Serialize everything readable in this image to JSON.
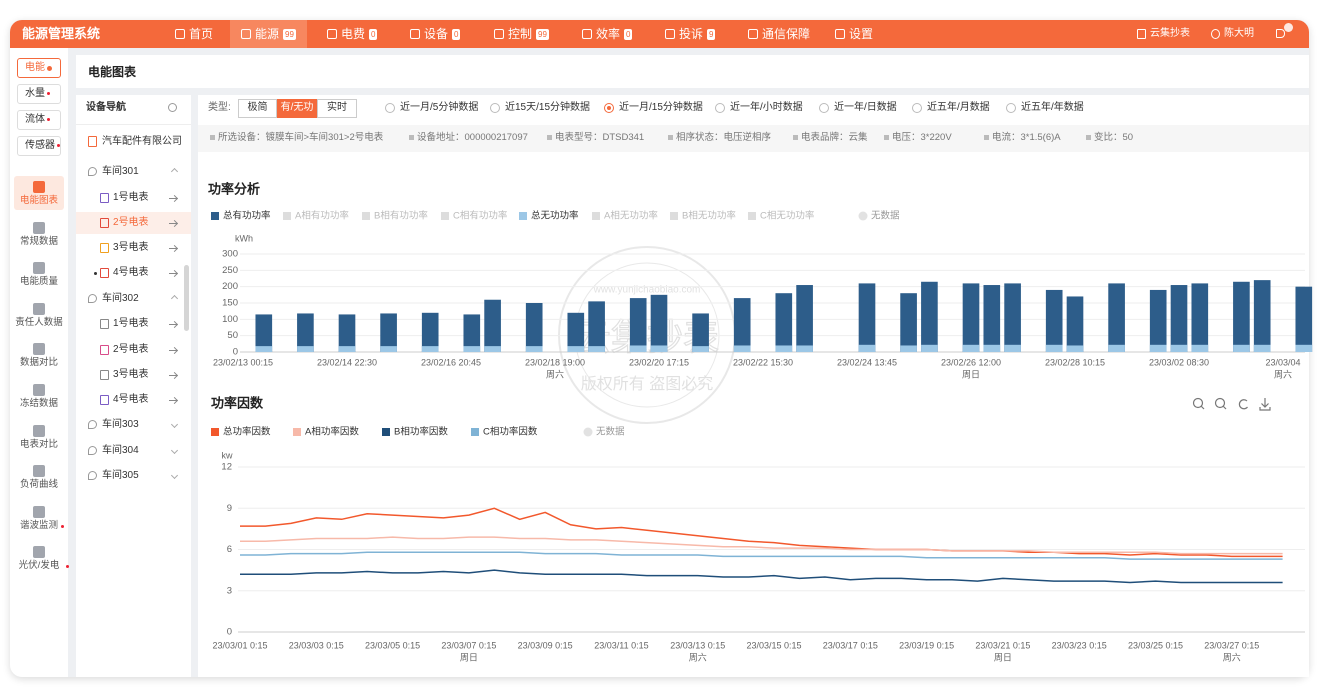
{
  "header": {
    "title": "能源管理系统",
    "nav": [
      {
        "label": "首页"
      },
      {
        "label": "能源",
        "badge": "99"
      },
      {
        "label": "电费",
        "badge": "0"
      },
      {
        "label": "设备",
        "badge": "0"
      },
      {
        "label": "控制",
        "badge": "99"
      },
      {
        "label": "效率",
        "badge": "0"
      },
      {
        "label": "投诉",
        "badge": "9"
      },
      {
        "label": "通信保障"
      },
      {
        "label": "设置"
      }
    ],
    "user_links": [
      "云集抄表",
      "陈大明"
    ]
  },
  "category_tabs": [
    "电能",
    "水量",
    "流体",
    "传感器"
  ],
  "side_menu": [
    "电能图表",
    "常规数据",
    "电能质量",
    "责任人数据",
    "数据对比",
    "冻结数据",
    "电表对比",
    "负荷曲线",
    "谐波监测",
    "光伏/发电"
  ],
  "page_title": "电能图表",
  "device_nav": {
    "title": "设备导航",
    "company": "汽车配件有限公司",
    "groups": [
      {
        "label": "车间301",
        "meters": [
          "1号电表",
          "2号电表",
          "3号电表",
          "4号电表"
        ]
      },
      {
        "label": "车间302",
        "meters": [
          "1号电表",
          "2号电表",
          "3号电表",
          "4号电表"
        ]
      },
      {
        "label": "车间303"
      },
      {
        "label": "车间304"
      },
      {
        "label": "车间305"
      }
    ]
  },
  "filters": {
    "type_label": "类型:",
    "types": [
      "极简",
      "有/无功",
      "实时"
    ],
    "ranges": [
      "近一月/5分钟数据",
      "近15天/15分钟数据",
      "近一月/15分钟数据",
      "近一年/小时数据",
      "近一年/日数据",
      "近五年/月数据",
      "近五年/年数据"
    ]
  },
  "meter_info": [
    "所选设备：镀膜车间>车间301>2号电表",
    "设备地址：000000217097",
    "电表型号：DTSD341",
    "相序状态：电压逆相序",
    "电表品牌：云集",
    "电压：3*220V",
    "电流：3*1.5(6)A",
    "变比：50"
  ],
  "watermark": {
    "brand": "云集抄表",
    "notice": "版权所有 盗图必究",
    "site": "www.yunjichaobiao.com"
  },
  "chart_data": [
    {
      "type": "bar",
      "title": "功率分析",
      "y_unit": "kWh",
      "categories": [
        "23/02/13 00:15",
        null,
        null,
        null,
        null,
        "23/02/14 22:30",
        null,
        null,
        null,
        null,
        "23/02/16 20:45",
        null,
        null,
        null,
        null,
        "23/02/18 19:00",
        null,
        null,
        null,
        null,
        "23/02/20 17:15",
        null,
        null,
        null,
        null,
        "23/02/22 15:30",
        null,
        null,
        null,
        null,
        "23/02/24 13:45",
        null,
        null,
        null,
        null,
        "23/02/26 12:00",
        null,
        null,
        null,
        null,
        "23/02/28 10:15",
        null,
        null,
        null,
        null,
        "23/03/02 08:30",
        null,
        null,
        null,
        null,
        "23/03/04",
        null
      ],
      "category_notes": [
        null,
        null,
        null,
        null,
        null,
        null,
        null,
        null,
        null,
        null,
        null,
        null,
        null,
        null,
        null,
        "周六",
        null,
        null,
        null,
        null,
        null,
        null,
        null,
        null,
        null,
        null,
        null,
        null,
        null,
        null,
        null,
        null,
        null,
        null,
        null,
        "周日",
        null,
        null,
        null,
        null,
        null,
        null,
        null,
        null,
        null,
        null,
        null,
        null,
        null,
        null,
        "周六",
        null
      ],
      "series": [
        {
          "name": "总有功功率",
          "color": "#2d5d8a",
          "values": [
            0,
            115,
            0,
            118,
            0,
            115,
            0,
            118,
            0,
            120,
            0,
            115,
            160,
            0,
            150,
            0,
            120,
            155,
            0,
            165,
            175,
            0,
            118,
            0,
            165,
            0,
            180,
            205,
            0,
            0,
            210,
            0,
            180,
            215,
            0,
            210,
            205,
            210,
            0,
            190,
            170,
            0,
            210,
            0,
            190,
            205,
            210,
            0,
            215,
            220,
            0,
            200
          ]
        },
        {
          "name": "A相有功功率",
          "visible": false
        },
        {
          "name": "B相有功功率",
          "visible": false
        },
        {
          "name": "C相有功功率",
          "visible": false
        },
        {
          "name": "总无功功率",
          "color": "#9cc7e6",
          "values": [
            0,
            18,
            0,
            18,
            0,
            18,
            0,
            18,
            0,
            18,
            0,
            18,
            18,
            0,
            18,
            0,
            18,
            18,
            0,
            20,
            20,
            0,
            18,
            0,
            20,
            0,
            20,
            20,
            0,
            0,
            22,
            0,
            20,
            22,
            0,
            22,
            22,
            22,
            0,
            22,
            20,
            0,
            22,
            0,
            22,
            22,
            22,
            0,
            22,
            22,
            0,
            22
          ]
        },
        {
          "name": "A相无功功率",
          "visible": false
        },
        {
          "name": "B相无功功率",
          "visible": false
        },
        {
          "name": "C相无功功率",
          "visible": false
        }
      ],
      "no_data_label": "无数据",
      "ylim": [
        0,
        300
      ],
      "yticks": [
        0,
        50,
        100,
        150,
        200,
        250,
        300
      ],
      "grid": true
    },
    {
      "type": "line",
      "title": "功率因数",
      "y_unit": "kw",
      "categories": [
        "23/03/01 0:15",
        null,
        null,
        "23/03/03 0:15",
        null,
        null,
        "23/03/05 0:15",
        null,
        null,
        "23/03/07 0:15",
        null,
        null,
        "23/03/09 0:15",
        null,
        null,
        "23/03/11 0:15",
        null,
        null,
        "23/03/13 0:15",
        null,
        null,
        "23/03/15 0:15",
        null,
        null,
        "23/03/17 0:15",
        null,
        null,
        "23/03/19 0:15",
        null,
        null,
        "23/03/21 0:15",
        null,
        null,
        "23/03/23 0:15",
        null,
        null,
        "23/03/25 0:15",
        null,
        null,
        "23/03/27 0:15",
        null,
        null
      ],
      "category_notes": [
        null,
        null,
        null,
        null,
        null,
        null,
        null,
        null,
        null,
        "周日",
        null,
        null,
        null,
        null,
        null,
        null,
        null,
        null,
        "周六",
        null,
        null,
        null,
        null,
        null,
        null,
        null,
        null,
        null,
        null,
        null,
        "周日",
        null,
        null,
        null,
        null,
        null,
        null,
        null,
        null,
        "周六",
        null,
        null
      ],
      "series": [
        {
          "name": "总功率因数",
          "color": "#f2582c",
          "values": [
            7.7,
            7.7,
            7.9,
            8.3,
            8.2,
            8.6,
            8.5,
            8.4,
            8.3,
            8.5,
            9.0,
            8.2,
            8.7,
            7.8,
            7.5,
            7.6,
            7.4,
            7.2,
            7.0,
            6.8,
            6.6,
            6.5,
            6.3,
            6.2,
            6.1,
            6.0,
            6.0,
            6.0,
            5.9,
            5.9,
            5.9,
            5.8,
            5.8,
            5.7,
            5.7,
            5.6,
            5.7,
            5.6,
            5.6,
            5.5,
            5.5,
            5.5
          ]
        },
        {
          "name": "A相功率因数",
          "color": "#f7b9a9",
          "values": [
            6.6,
            6.6,
            6.7,
            6.8,
            6.8,
            6.8,
            6.9,
            6.8,
            6.8,
            6.9,
            6.9,
            6.8,
            6.8,
            6.7,
            6.7,
            6.6,
            6.5,
            6.4,
            6.3,
            6.2,
            6.2,
            6.1,
            6.1,
            6.1,
            6.0,
            6.0,
            6.0,
            6.0,
            5.9,
            5.9,
            5.9,
            5.9,
            5.8,
            5.8,
            5.8,
            5.8,
            5.8,
            5.7,
            5.7,
            5.7,
            5.7,
            5.7
          ]
        },
        {
          "name": "B相功率因数",
          "color": "#1f4e79",
          "values": [
            4.2,
            4.2,
            4.2,
            4.3,
            4.3,
            4.4,
            4.3,
            4.3,
            4.4,
            4.3,
            4.5,
            4.3,
            4.2,
            4.2,
            4.2,
            4.2,
            4.1,
            4.1,
            4.1,
            4.0,
            4.0,
            4.1,
            3.9,
            4.0,
            3.8,
            3.9,
            3.9,
            3.8,
            3.8,
            3.7,
            3.9,
            3.8,
            3.7,
            3.7,
            3.7,
            3.6,
            3.7,
            3.6,
            3.6,
            3.6,
            3.6,
            3.6
          ]
        },
        {
          "name": "C相功率因数",
          "color": "#7fb3d5",
          "values": [
            5.6,
            5.6,
            5.7,
            5.7,
            5.7,
            5.8,
            5.8,
            5.8,
            5.8,
            5.8,
            5.8,
            5.8,
            5.7,
            5.7,
            5.7,
            5.6,
            5.6,
            5.6,
            5.6,
            5.5,
            5.5,
            5.5,
            5.5,
            5.5,
            5.5,
            5.5,
            5.5,
            5.4,
            5.4,
            5.4,
            5.4,
            5.4,
            5.4,
            5.4,
            5.4,
            5.3,
            5.3,
            5.3,
            5.3,
            5.3,
            5.3,
            5.3
          ]
        }
      ],
      "no_data_label": "无数据",
      "ylim": [
        0,
        12
      ],
      "yticks": [
        0,
        3,
        6,
        9,
        12
      ],
      "grid": true
    }
  ]
}
